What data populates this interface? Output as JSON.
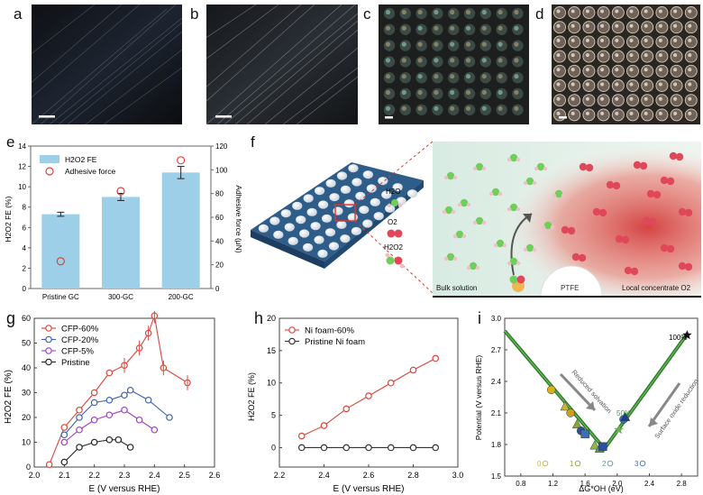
{
  "panels": {
    "a": "a",
    "b": "b",
    "c": "c",
    "d": "d",
    "e": "e",
    "f": "f",
    "g": "g",
    "h": "h",
    "i": "i"
  },
  "colors": {
    "red": "#d9463a",
    "blue": "#3a60b0",
    "purple": "#a23cc4",
    "black": "#222222",
    "bar": "#9dcfe8",
    "green": "#2e7d32",
    "orange": "#d88d1b"
  },
  "schematic": {
    "legend": [
      "H2O",
      "O2",
      "H2O2"
    ],
    "bulk": "Bulk solution",
    "ptfe": "PTFE",
    "local": "Local concentrate O2"
  },
  "chart_data": [
    {
      "id": "e",
      "type": "bar",
      "categories": [
        "Pristine GC",
        "300-GC",
        "200-GC"
      ],
      "series": [
        {
          "name": "H2O2 FE",
          "values": [
            7.3,
            9.0,
            11.4
          ],
          "errors": [
            0.2,
            0.35,
            0.6
          ]
        },
        {
          "name": "Adhesive force",
          "values": [
            23,
            82,
            108
          ],
          "axis": "right"
        }
      ],
      "ylabel": "H2O2 FE (%)",
      "y2label": "Adhesive force (μN)",
      "ylim": [
        0,
        14
      ],
      "y2lim": [
        0,
        120
      ],
      "yticks": [
        "0",
        "2",
        "4",
        "6",
        "8",
        "10",
        "12",
        "14"
      ],
      "y2ticks": [
        "0",
        "20",
        "40",
        "60",
        "80",
        "100",
        "120"
      ],
      "legend": [
        "H2O2 FE",
        "Adhesive force"
      ]
    },
    {
      "id": "g",
      "type": "line",
      "xlabel": "E (V versus RHE)",
      "ylabel": "H2O2 FE (%)",
      "xlim": [
        2.0,
        2.6
      ],
      "ylim": [
        0,
        60
      ],
      "xticks": [
        "2.0",
        "2.1",
        "2.2",
        "2.3",
        "2.4",
        "2.5",
        "2.6"
      ],
      "yticks": [
        "0",
        "10",
        "20",
        "30",
        "40",
        "50",
        "60"
      ],
      "series": [
        {
          "name": "CFP-60%",
          "x": [
            2.05,
            2.1,
            2.15,
            2.2,
            2.25,
            2.3,
            2.35,
            2.38,
            2.4,
            2.43,
            2.51
          ],
          "y": [
            1,
            16,
            23,
            30,
            38,
            41,
            48,
            54,
            61,
            40,
            34
          ]
        },
        {
          "name": "CFP-20%",
          "x": [
            2.1,
            2.15,
            2.2,
            2.25,
            2.3,
            2.32,
            2.38,
            2.45
          ],
          "y": [
            13,
            20,
            26,
            27,
            29,
            31,
            27,
            20
          ]
        },
        {
          "name": "CFP-5%",
          "x": [
            2.1,
            2.15,
            2.2,
            2.25,
            2.3,
            2.35,
            2.4
          ],
          "y": [
            10,
            15,
            19,
            21,
            23,
            19,
            15
          ]
        },
        {
          "name": "Pristine",
          "x": [
            2.1,
            2.15,
            2.2,
            2.25,
            2.28,
            2.32
          ],
          "y": [
            2,
            8,
            10,
            11,
            11,
            8
          ]
        }
      ]
    },
    {
      "id": "h",
      "type": "line",
      "xlabel": "E (V versus RHE)",
      "ylabel": "H2O2 FE (%)",
      "xlim": [
        2.2,
        3.0
      ],
      "ylim": [
        -3,
        20
      ],
      "xticks": [
        "2.2",
        "2.4",
        "2.6",
        "2.8",
        "3.0"
      ],
      "yticks": [
        "0",
        "5",
        "10",
        "15",
        "20"
      ],
      "series": [
        {
          "name": "Ni foam-60%",
          "x": [
            2.3,
            2.4,
            2.5,
            2.6,
            2.7,
            2.8,
            2.9
          ],
          "y": [
            1.8,
            3.4,
            6,
            8,
            10,
            12,
            13.8
          ]
        },
        {
          "name": "Pristine Ni foam",
          "x": [
            2.3,
            2.4,
            2.5,
            2.6,
            2.7,
            2.8,
            2.9
          ],
          "y": [
            0,
            0,
            0,
            0,
            0,
            0,
            0
          ]
        }
      ]
    },
    {
      "id": "i",
      "type": "scatter",
      "xlabel": "ΔG*OH (eV)",
      "ylabel": "Potential (V versus RHE)",
      "xlim": [
        0.6,
        3.0
      ],
      "ylim": [
        1.5,
        3.0
      ],
      "xticks": [
        "0.8",
        "1.2",
        "1.6",
        "2.0",
        "2.4",
        "2.8"
      ],
      "yticks": [
        "1.5",
        "1.8",
        "2.1",
        "2.4",
        "2.7",
        "3.0"
      ],
      "volcano": [
        [
          0.6,
          2.88
        ],
        [
          1.84,
          1.76
        ],
        [
          2.88,
          2.86
        ]
      ],
      "points": [
        {
          "x": 1.18,
          "y": 2.32,
          "marker": "circle",
          "c": "#d7b21c"
        },
        {
          "x": 1.35,
          "y": 2.16,
          "marker": "triangle",
          "c": "#c8b43a"
        },
        {
          "x": 1.42,
          "y": 2.1,
          "marker": "circle",
          "c": "#c7a020"
        },
        {
          "x": 1.5,
          "y": 1.99,
          "marker": "triangle",
          "c": "#8aa63a"
        },
        {
          "x": 1.55,
          "y": 1.93,
          "marker": "circle",
          "c": "#2d4f9e"
        },
        {
          "x": 1.6,
          "y": 1.9,
          "marker": "square",
          "c": "#3a70b8"
        },
        {
          "x": 1.72,
          "y": 1.79,
          "marker": "triangle",
          "c": "#8ab84a"
        },
        {
          "x": 1.78,
          "y": 1.76,
          "marker": "triangle",
          "c": "#5a9c6a"
        },
        {
          "x": 1.82,
          "y": 1.78,
          "marker": "square",
          "c": "#2d4f9e"
        },
        {
          "x": 2.02,
          "y": 1.94,
          "marker": "star",
          "c": "#6ab04c"
        },
        {
          "x": 2.08,
          "y": 2.04,
          "marker": "circle",
          "c": "#3a70b8"
        },
        {
          "x": 2.1,
          "y": 2.06,
          "marker": "triangle",
          "c": "#1b3e8e"
        },
        {
          "x": 2.87,
          "y": 2.84,
          "marker": "star",
          "c": "#111111"
        }
      ],
      "annotations": {
        "reduced": "Reduced solvation",
        "surface": "Surface oxide reduction",
        "p100": "100%",
        "p50": "50%"
      },
      "legend": [
        {
          "t": "0",
          "c": "#c8b43a"
        },
        {
          "t": "1",
          "c": "#8aa63a"
        },
        {
          "t": "2",
          "c": "#5a9c8a"
        },
        {
          "t": "3",
          "c": "#3a70b8"
        }
      ]
    }
  ]
}
